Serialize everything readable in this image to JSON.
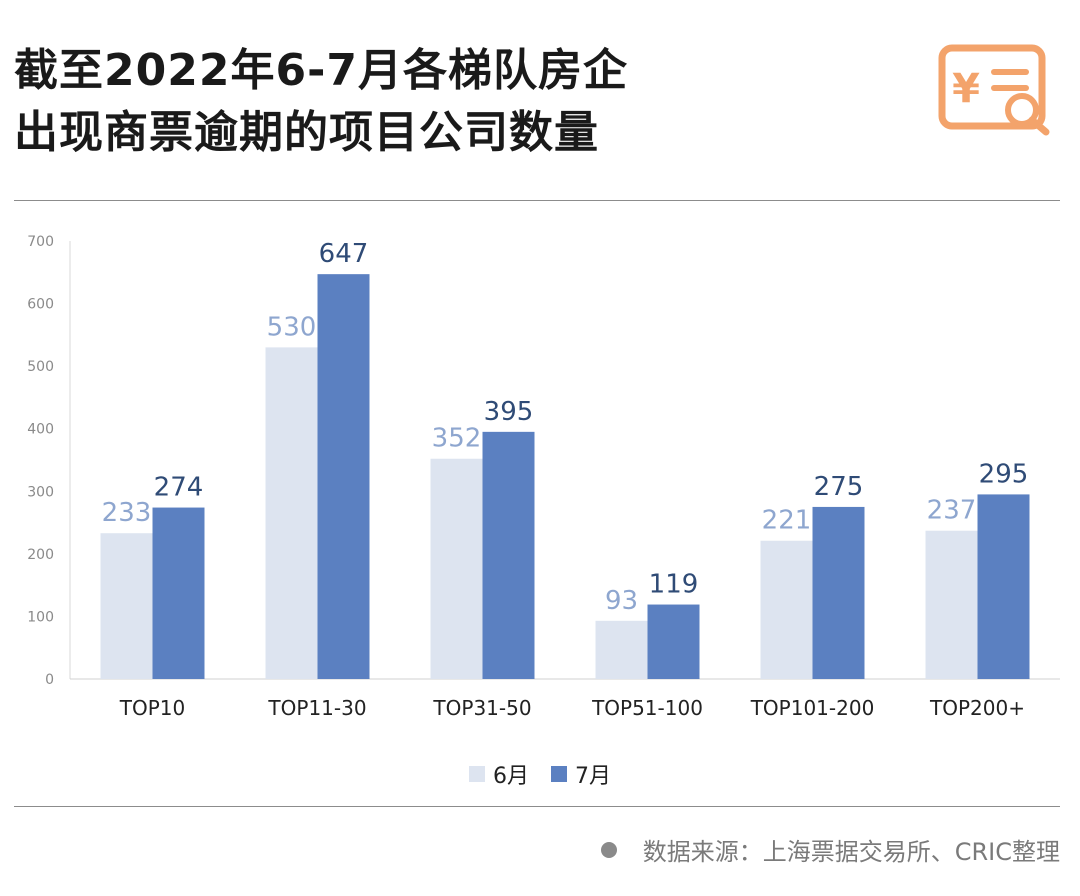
{
  "header": {
    "title_line1": "截至2022年6-7月各梯队房企",
    "title_line2": "出现商票逾期的项目公司数量"
  },
  "colors": {
    "june": "#dde4f0",
    "july": "#5b80c1",
    "june_label": "#8ea6cf",
    "july_label": "#2f4b76",
    "logo": "#f3a36b"
  },
  "legend": {
    "june": "6月",
    "july": "7月"
  },
  "source": {
    "text": "数据来源：上海票据交易所、CRIC整理"
  },
  "chart_data": {
    "type": "bar",
    "categories": [
      "TOP10",
      "TOP11-30",
      "TOP31-50",
      "TOP51-100",
      "TOP101-200",
      "TOP200+"
    ],
    "series": [
      {
        "name": "6月",
        "values": [
          233,
          530,
          352,
          93,
          221,
          237
        ]
      },
      {
        "name": "7月",
        "values": [
          274,
          647,
          395,
          119,
          275,
          295
        ]
      }
    ],
    "title": "截至2022年6-7月各梯队房企出现商票逾期的项目公司数量",
    "ylim": [
      0,
      700
    ],
    "yticks": [
      "0",
      "100",
      "200",
      "300",
      "400",
      "500",
      "600",
      "700"
    ],
    "grid": false,
    "legend_position": "bottom"
  }
}
